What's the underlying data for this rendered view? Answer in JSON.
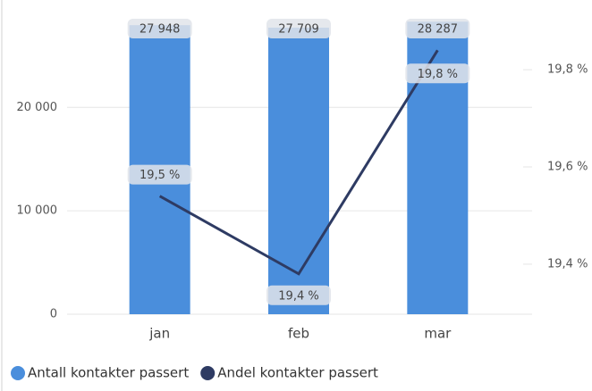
{
  "chart_data": {
    "type": "combo",
    "categories": [
      "jan",
      "feb",
      "mar"
    ],
    "series": [
      {
        "name": "Antall kontakter passert",
        "color": "#4a8edc",
        "type": "bar",
        "values": [
          27948,
          27709,
          28287
        ],
        "value_labels": [
          "27 948",
          "27 709",
          "28 287"
        ]
      },
      {
        "name": "Andel kontakter passert",
        "color": "#2e3b63",
        "type": "line",
        "axis": "y2",
        "values": [
          19.54,
          19.38,
          19.84
        ],
        "value_labels": [
          "19,5 %",
          "19,4 %",
          "19,8 %"
        ]
      }
    ],
    "ylim": [
      0,
      29000
    ],
    "yticks": [
      0,
      {
        "value": 10000,
        "label": "10 000"
      },
      {
        "value": 20000,
        "label": "20 000"
      }
    ],
    "y2lim": [
      19.297,
      19.914
    ],
    "y2ticks": [
      {
        "value": 19.4,
        "label": "19,4 %"
      },
      {
        "value": 19.6,
        "label": "19,6 %"
      },
      {
        "value": 19.8,
        "label": "19,8 %"
      }
    ],
    "grid": true,
    "legend": "bottom-left"
  }
}
